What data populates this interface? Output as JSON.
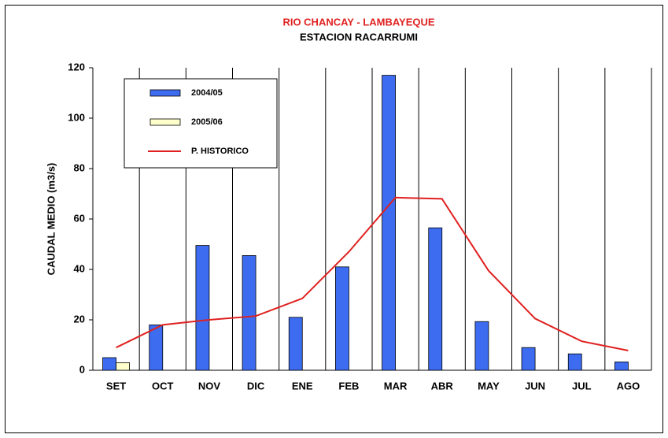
{
  "chart_data": {
    "type": "bar",
    "title": "RIO CHANCAY - LAMBAYEQUE",
    "subtitle": "ESTACION RACARRUMI",
    "y_label": "CAUDAL MEDIO (m3/s)",
    "categories": [
      "SET",
      "OCT",
      "NOV",
      "DIC",
      "ENE",
      "FEB",
      "MAR",
      "ABR",
      "MAY",
      "JUN",
      "JUL",
      "AGO"
    ],
    "series": [
      {
        "name": "2004/05",
        "type": "bar",
        "color": "#3d6cf0",
        "values": [
          5,
          18,
          49.5,
          45.5,
          21,
          41,
          117,
          56.5,
          19.3,
          9,
          6.5,
          3.3
        ]
      },
      {
        "name": "2005/06",
        "type": "bar",
        "color": "#ffffcc",
        "values": [
          3,
          null,
          null,
          null,
          null,
          null,
          null,
          null,
          null,
          null,
          null,
          null
        ]
      },
      {
        "name": "P. HISTORICO",
        "type": "line",
        "color": "#e02020",
        "values": [
          9,
          18,
          20,
          21.5,
          28.5,
          47,
          68.5,
          68,
          39.5,
          20.5,
          11.5,
          7.8
        ]
      }
    ],
    "ylim": [
      0,
      120
    ],
    "yticks": [
      0,
      20,
      40,
      60,
      80,
      100,
      120
    ],
    "x_grid": true
  }
}
